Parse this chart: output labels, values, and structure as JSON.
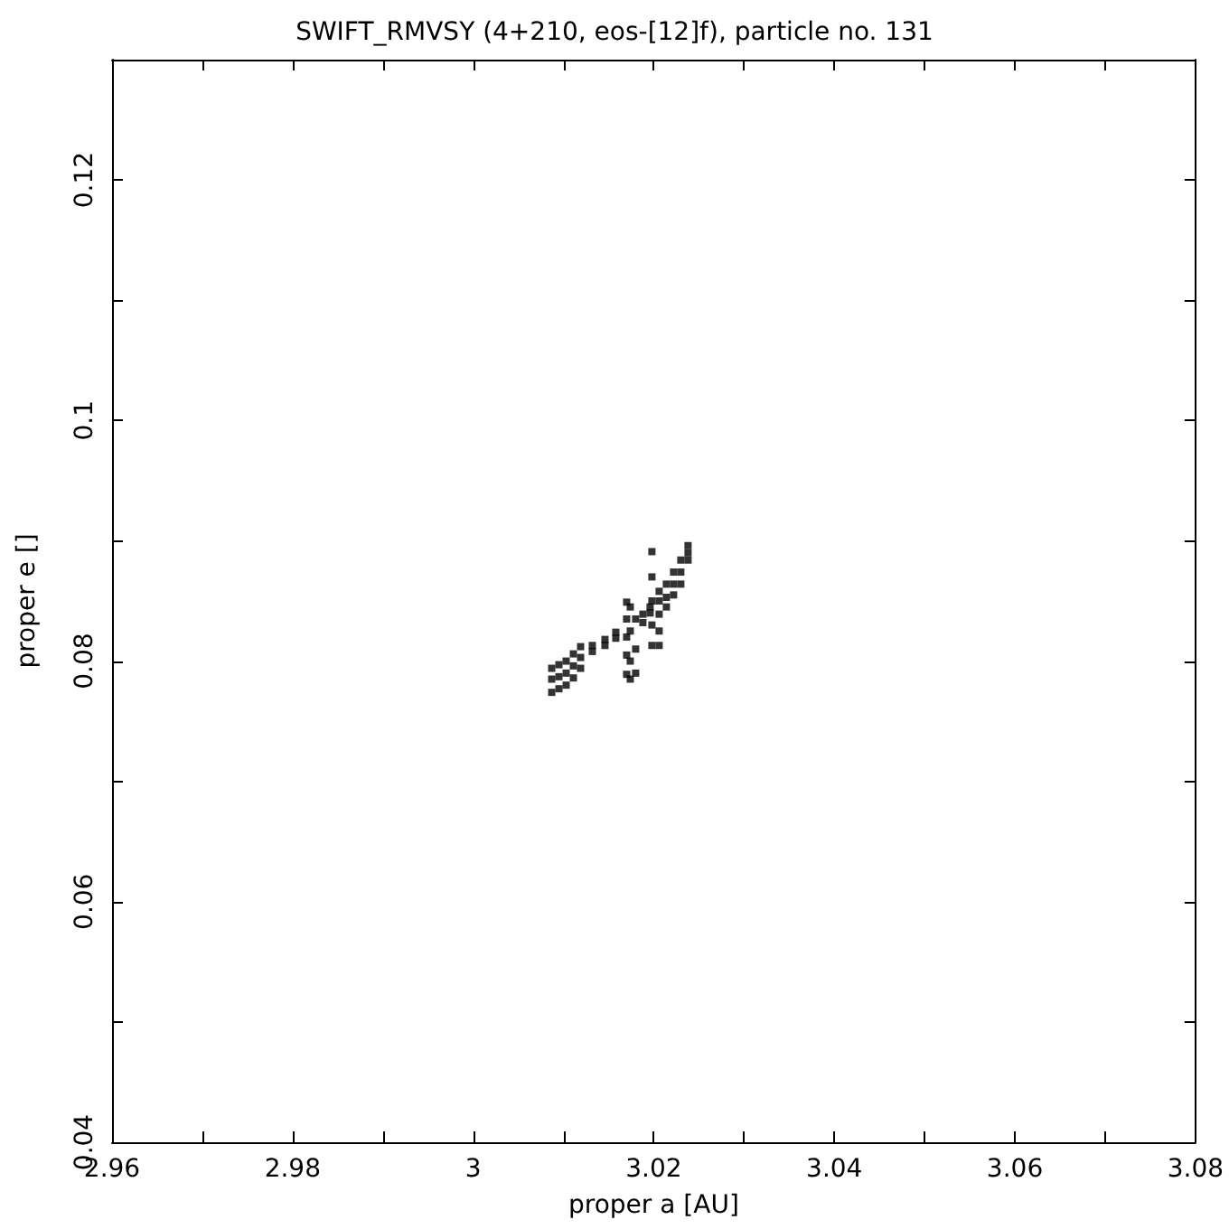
{
  "chart_data": {
    "type": "scatter",
    "title": "SWIFT_RMVSY (4+210, eos-[12]f), particle no. 131",
    "xlabel": "proper a [AU]",
    "ylabel": "proper e []",
    "marker": "square",
    "xlim": [
      2.96,
      3.08
    ],
    "ylim": [
      0.04,
      0.13
    ],
    "xticks": [
      2.96,
      {
        "value": 2.97,
        "label": null
      },
      2.98,
      {
        "value": 2.99,
        "label": null
      },
      3,
      {
        "value": 3.01,
        "label": null
      },
      3.02,
      {
        "value": 3.03,
        "label": null
      },
      3.04,
      {
        "value": 3.05,
        "label": null
      },
      3.06,
      {
        "value": 3.07,
        "label": null
      },
      3.08
    ],
    "yticks": [
      0.04,
      {
        "value": 0.05,
        "label": null
      },
      0.06,
      {
        "value": 0.07,
        "label": null
      },
      0.08,
      {
        "value": 0.09,
        "label": null
      },
      0.1,
      {
        "value": 0.11,
        "label": null
      },
      0.12,
      {
        "value": 0.13,
        "label": null
      }
    ],
    "series": [
      {
        "color": "#000000",
        "x": [
          3.0087,
          3.0087,
          3.0087,
          3.0095,
          3.0095,
          3.0095,
          3.0103,
          3.0103,
          3.0103,
          3.0111,
          3.0111,
          3.0111,
          3.0119,
          3.0119,
          3.0119,
          3.0132,
          3.0132,
          3.0146,
          3.0146,
          3.0158,
          3.0158,
          3.017,
          3.017,
          3.017,
          3.017,
          3.017,
          3.0174,
          3.0174,
          3.0174,
          3.0174,
          3.018,
          3.018,
          3.018,
          3.0188,
          3.0188,
          3.0196,
          3.0196,
          3.0198,
          3.0198,
          3.0198,
          3.0198,
          3.0198,
          3.0206,
          3.0206,
          3.0206,
          3.0206,
          3.0206,
          3.0214,
          3.0214,
          3.0214,
          3.0222,
          3.0222,
          3.0222,
          3.023,
          3.023,
          3.023,
          3.0238,
          3.0238,
          3.0238
        ],
        "values": [
          0.0794,
          0.0785,
          0.0774,
          0.0797,
          0.0787,
          0.0777,
          0.08,
          0.079,
          0.078,
          0.0806,
          0.0796,
          0.0786,
          0.0812,
          0.0803,
          0.0794,
          0.0813,
          0.0808,
          0.0818,
          0.0813,
          0.0824,
          0.0819,
          0.0849,
          0.0835,
          0.082,
          0.0805,
          0.0789,
          0.0845,
          0.0825,
          0.08,
          0.0785,
          0.0835,
          0.081,
          0.079,
          0.0839,
          0.0832,
          0.0845,
          0.084,
          0.0891,
          0.087,
          0.085,
          0.083,
          0.0813,
          0.0858,
          0.085,
          0.0839,
          0.0825,
          0.0813,
          0.0864,
          0.0853,
          0.0845,
          0.0874,
          0.0864,
          0.0855,
          0.0884,
          0.0874,
          0.0864,
          0.0896,
          0.089,
          0.0884
        ]
      }
    ]
  }
}
